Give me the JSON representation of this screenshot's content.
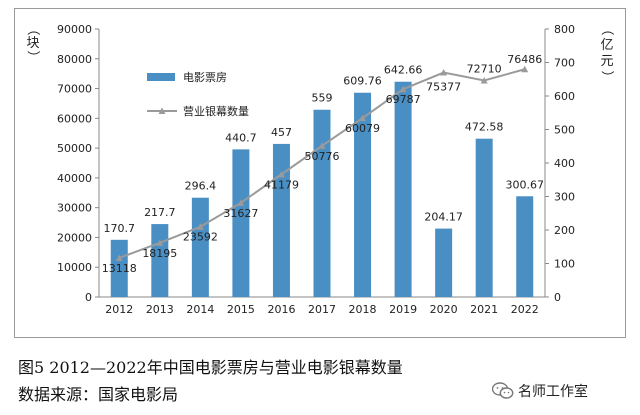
{
  "chart_data": {
    "type": "bar",
    "categories": [
      "2012",
      "2013",
      "2014",
      "2015",
      "2016",
      "2017",
      "2018",
      "2019",
      "2020",
      "2021",
      "2022"
    ],
    "series": [
      {
        "name": "电影票房",
        "type": "bar",
        "axis": "right",
        "values": [
          170.7,
          217.7,
          296.4,
          440.7,
          457,
          559,
          609.76,
          642.66,
          204.17,
          472.58,
          300.67
        ],
        "labels": [
          "170.7",
          "217.7",
          "296.4",
          "440.7",
          "457",
          "559",
          "609.76",
          "642.66",
          "204.17",
          "472.58",
          "300.67"
        ]
      },
      {
        "name": "营业银幕数量",
        "type": "line",
        "axis": "left",
        "values": [
          13118,
          18195,
          23592,
          31627,
          41179,
          50776,
          60079,
          69787,
          75377,
          72710,
          76486
        ],
        "labels": [
          "13118",
          "18195",
          "23592",
          "31627",
          "41179",
          "50776",
          "60079",
          "69787",
          "75377",
          "72710",
          "76486"
        ]
      }
    ],
    "left_axis": {
      "label": "（块）",
      "ylim": [
        0,
        90000
      ],
      "ticks": [
        "0",
        "10000",
        "20000",
        "30000",
        "40000",
        "50000",
        "60000",
        "70000",
        "80000",
        "90000"
      ]
    },
    "right_axis": {
      "label": "（亿元）",
      "ylim": [
        0,
        800
      ],
      "ticks": [
        "0",
        "100",
        "200",
        "300",
        "400",
        "500",
        "600",
        "700",
        "800"
      ]
    },
    "legend_placement": "top-left",
    "grid": false,
    "colors": {
      "bar": "#4a8fc4",
      "line": "#9a9a9a"
    }
  },
  "caption": {
    "line1": "图5  2012—2022年中国电影票房与营业电影银幕数量",
    "line2": "数据来源：国家电影局"
  },
  "watermark": {
    "text": "名师工作室",
    "icon": "wechat-icon"
  }
}
